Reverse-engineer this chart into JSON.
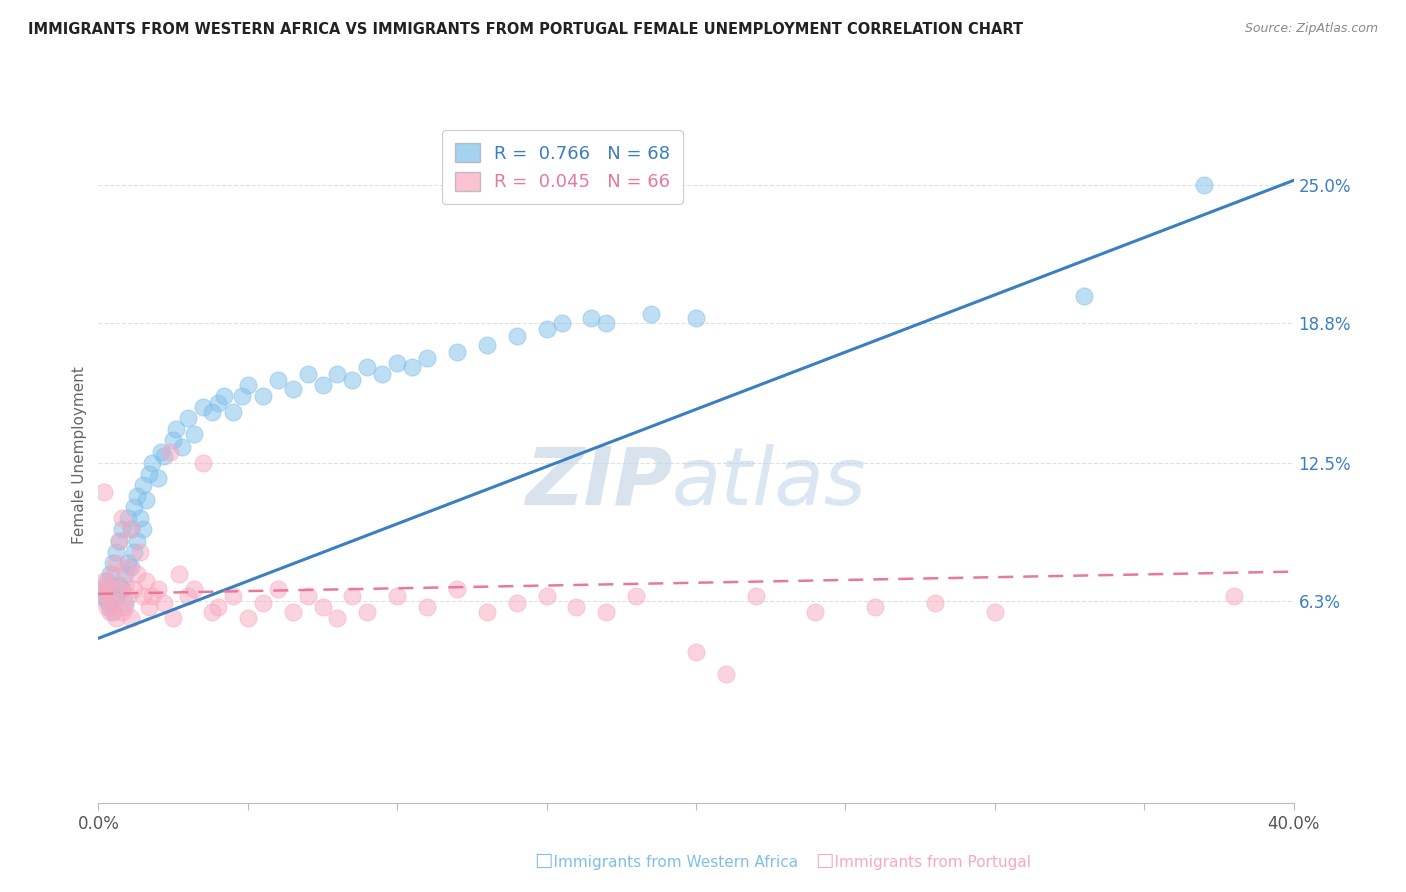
{
  "title": "IMMIGRANTS FROM WESTERN AFRICA VS IMMIGRANTS FROM PORTUGAL FEMALE UNEMPLOYMENT CORRELATION CHART",
  "source": "Source: ZipAtlas.com",
  "ylabel": "Female Unemployment",
  "yticks": [
    0.063,
    0.125,
    0.188,
    0.25
  ],
  "ytick_labels": [
    "6.3%",
    "12.5%",
    "18.8%",
    "25.0%"
  ],
  "xlim": [
    0.0,
    0.4
  ],
  "ylim": [
    -0.028,
    0.285
  ],
  "blue_label": "Immigrants from Western Africa",
  "pink_label": "Immigrants from Portugal",
  "blue_R": "0.766",
  "blue_N": "68",
  "pink_R": "0.045",
  "pink_N": "66",
  "blue_color": "#7fbfea",
  "pink_color": "#f9a8c0",
  "blue_line_color": "#3a7fc1",
  "pink_line_color": "#e8799a",
  "watermark_zip": "ZIP",
  "watermark_atlas": "atlas",
  "blue_scatter_x": [
    0.001,
    0.002,
    0.003,
    0.003,
    0.004,
    0.004,
    0.005,
    0.005,
    0.006,
    0.006,
    0.007,
    0.007,
    0.008,
    0.008,
    0.009,
    0.009,
    0.01,
    0.01,
    0.011,
    0.011,
    0.012,
    0.012,
    0.013,
    0.013,
    0.014,
    0.015,
    0.015,
    0.016,
    0.017,
    0.018,
    0.02,
    0.021,
    0.022,
    0.025,
    0.026,
    0.028,
    0.03,
    0.032,
    0.035,
    0.038,
    0.04,
    0.042,
    0.045,
    0.048,
    0.05,
    0.055,
    0.06,
    0.065,
    0.07,
    0.075,
    0.08,
    0.085,
    0.09,
    0.095,
    0.1,
    0.105,
    0.11,
    0.12,
    0.13,
    0.14,
    0.15,
    0.155,
    0.165,
    0.17,
    0.185,
    0.2,
    0.33,
    0.37
  ],
  "blue_scatter_y": [
    0.065,
    0.068,
    0.063,
    0.072,
    0.06,
    0.075,
    0.058,
    0.08,
    0.065,
    0.085,
    0.07,
    0.09,
    0.068,
    0.095,
    0.062,
    0.075,
    0.08,
    0.1,
    0.078,
    0.095,
    0.085,
    0.105,
    0.09,
    0.11,
    0.1,
    0.095,
    0.115,
    0.108,
    0.12,
    0.125,
    0.118,
    0.13,
    0.128,
    0.135,
    0.14,
    0.132,
    0.145,
    0.138,
    0.15,
    0.148,
    0.152,
    0.155,
    0.148,
    0.155,
    0.16,
    0.155,
    0.162,
    0.158,
    0.165,
    0.16,
    0.165,
    0.162,
    0.168,
    0.165,
    0.17,
    0.168,
    0.172,
    0.175,
    0.178,
    0.182,
    0.185,
    0.188,
    0.19,
    0.188,
    0.192,
    0.19,
    0.2,
    0.25
  ],
  "pink_scatter_x": [
    0.001,
    0.001,
    0.002,
    0.002,
    0.003,
    0.003,
    0.004,
    0.004,
    0.005,
    0.005,
    0.006,
    0.006,
    0.007,
    0.007,
    0.008,
    0.008,
    0.009,
    0.009,
    0.01,
    0.01,
    0.011,
    0.011,
    0.012,
    0.013,
    0.014,
    0.015,
    0.016,
    0.017,
    0.018,
    0.02,
    0.022,
    0.024,
    0.025,
    0.027,
    0.03,
    0.032,
    0.035,
    0.038,
    0.04,
    0.045,
    0.05,
    0.055,
    0.06,
    0.065,
    0.07,
    0.075,
    0.08,
    0.085,
    0.09,
    0.1,
    0.11,
    0.12,
    0.13,
    0.14,
    0.15,
    0.16,
    0.17,
    0.18,
    0.2,
    0.21,
    0.22,
    0.24,
    0.26,
    0.28,
    0.3,
    0.38
  ],
  "pink_scatter_y": [
    0.065,
    0.068,
    0.072,
    0.112,
    0.06,
    0.07,
    0.058,
    0.065,
    0.062,
    0.075,
    0.055,
    0.08,
    0.068,
    0.09,
    0.058,
    0.1,
    0.06,
    0.07,
    0.065,
    0.078,
    0.055,
    0.095,
    0.068,
    0.075,
    0.085,
    0.065,
    0.072,
    0.06,
    0.065,
    0.068,
    0.062,
    0.13,
    0.055,
    0.075,
    0.065,
    0.068,
    0.125,
    0.058,
    0.06,
    0.065,
    0.055,
    0.062,
    0.068,
    0.058,
    0.065,
    0.06,
    0.055,
    0.065,
    0.058,
    0.065,
    0.06,
    0.068,
    0.058,
    0.062,
    0.065,
    0.06,
    0.058,
    0.065,
    0.04,
    0.03,
    0.065,
    0.058,
    0.06,
    0.062,
    0.058,
    0.065
  ],
  "blue_line_x0": 0.0,
  "blue_line_y0": 0.046,
  "blue_line_x1": 0.4,
  "blue_line_y1": 0.252,
  "pink_line_x0": 0.0,
  "pink_line_y0": 0.066,
  "pink_line_x1": 0.4,
  "pink_line_y1": 0.076,
  "grid_color": "#e0e0e0",
  "background_color": "#ffffff"
}
